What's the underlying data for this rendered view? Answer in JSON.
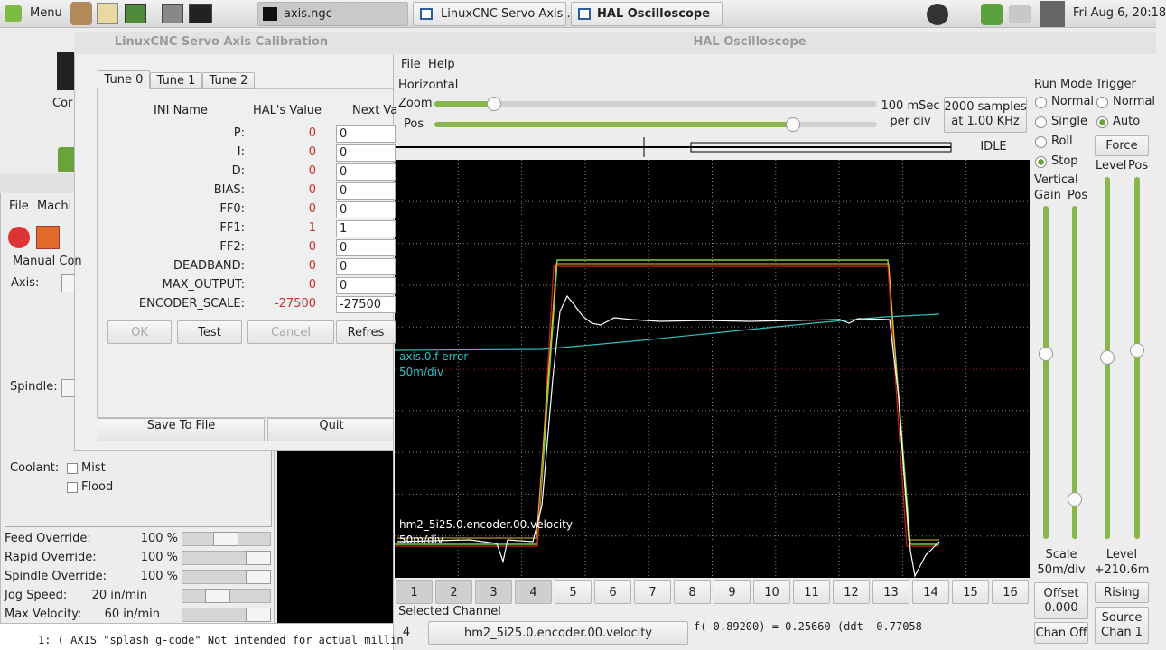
{
  "taskbar": {
    "menu": "Menu",
    "tasks": [
      "axis.ngc",
      "LinuxCNC Servo Axis ...",
      "HAL Oscilloscope"
    ],
    "clock": "Fri Aug 6, 20:18"
  },
  "desktop": {
    "icon_label": "Cor"
  },
  "axis_window": {
    "menu": [
      "File",
      "Machi"
    ],
    "tab": "Manual Con",
    "axis_label": "Axis:",
    "spindle_label": "Spindle:",
    "coolant_label": "Coolant:",
    "coolant": [
      "Mist",
      "Flood"
    ],
    "overrides": [
      [
        "Feed Override:",
        "100 %"
      ],
      [
        "Rapid Override:",
        "100 %"
      ],
      [
        "Spindle Override:",
        "100 %"
      ],
      [
        "Jog Speed:",
        "20 in/min"
      ],
      [
        "Max Velocity:",
        "60 in/min"
      ]
    ],
    "gcode": [
      "1: ( AXIS \"splash g-code\" Not intended for actual millin"
    ]
  },
  "calibration": {
    "title": "LinuxCNC Servo Axis Calibration",
    "tabs": [
      "Tune 0",
      "Tune 1",
      "Tune 2"
    ],
    "columns": [
      "INI Name",
      "HAL's Value",
      "Next Va"
    ],
    "rows": [
      [
        "P:",
        "0",
        "0"
      ],
      [
        "I:",
        "0",
        "0"
      ],
      [
        "D:",
        "0",
        "0"
      ],
      [
        "BIAS:",
        "0",
        "0"
      ],
      [
        "FF0:",
        "0",
        "0"
      ],
      [
        "FF1:",
        "1",
        "1"
      ],
      [
        "FF2:",
        "0",
        "0"
      ],
      [
        "DEADBAND:",
        "0",
        "0"
      ],
      [
        "MAX_OUTPUT:",
        "0",
        "0"
      ],
      [
        "ENCODER_SCALE:",
        "-27500",
        "-27500"
      ]
    ],
    "buttons": [
      "OK",
      "Test",
      "Cancel",
      "Refres"
    ],
    "bottom_buttons": [
      "Save To File",
      "Quit"
    ]
  },
  "scope": {
    "title": "HAL Oscilloscope",
    "menu": [
      "File",
      "Help"
    ],
    "horizontal": "Horizontal",
    "zoom": "Zoom",
    "pos": "Pos",
    "rate": [
      "100 mSec",
      "per div"
    ],
    "samples": [
      "2000 samples",
      "at 1.00 KHz"
    ],
    "state": "IDLE",
    "run_mode": {
      "label": "Run Mode",
      "options": [
        "Normal",
        "Single",
        "Roll",
        "Stop"
      ]
    },
    "trigger": {
      "label": "Trigger",
      "options": [
        "Normal",
        "Auto"
      ],
      "force": "Force",
      "level": "Level",
      "pos": "Pos"
    },
    "vertical": {
      "label": "Vertical",
      "gain": "Gain",
      "pos": "Pos"
    },
    "scale": [
      "Scale",
      "50m/div"
    ],
    "level_readout": [
      "Level",
      "+210.6m"
    ],
    "traces": [
      {
        "name": "axis.0.f-error",
        "scale": "50m/div"
      },
      {
        "name": "hm2_5i25.0.encoder.00.velocity",
        "scale": "50m/div"
      }
    ],
    "channels": [
      "1",
      "2",
      "3",
      "4",
      "5",
      "6",
      "7",
      "8",
      "9",
      "10",
      "11",
      "12",
      "13",
      "14",
      "15",
      "16"
    ],
    "selected_channel": "Selected Channel",
    "channel_number": "4",
    "channel_signal": "hm2_5i25.0.encoder.00.velocity",
    "readout": "f( 0.89200) =  0.25660 (ddt -0.77058",
    "offset": [
      "Offset",
      "0.000"
    ],
    "rising": "Rising",
    "chan_off": "Chan Off",
    "source": [
      "Source",
      "Chan 1"
    ]
  }
}
